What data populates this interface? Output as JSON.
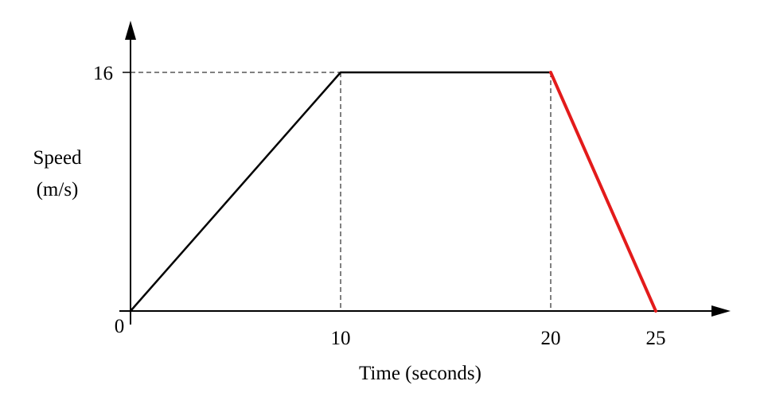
{
  "chart_data": {
    "type": "line",
    "xlabel": "Time (seconds)",
    "ylabel": [
      "Speed",
      "(m/s)"
    ],
    "origin_label": "0",
    "x_ticks": [
      10,
      20,
      25
    ],
    "y_ticks": [
      16
    ],
    "series": [
      {
        "x": [
          0,
          10,
          20
        ],
        "y": [
          0,
          16,
          16
        ],
        "color": "#000000"
      },
      {
        "x": [
          20,
          25
        ],
        "y": [
          16,
          0
        ],
        "color": "#e31b1b"
      }
    ],
    "reference_lines": {
      "horizontal": [
        {
          "y": 16,
          "from_x": 0,
          "to_x": 10
        }
      ],
      "vertical": [
        {
          "x": 10,
          "from_y": 0,
          "to_y": 16
        },
        {
          "x": 20,
          "from_y": 0,
          "to_y": 16
        }
      ]
    },
    "grid": false,
    "legend": "none"
  }
}
